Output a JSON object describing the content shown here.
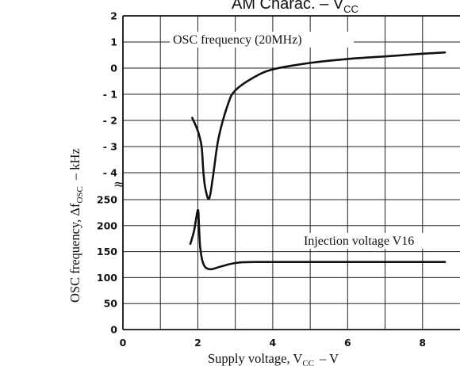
{
  "chart_data": {
    "type": "line",
    "title": "AM Charac.  –  V",
    "title_sub": "CC",
    "xlabel": "Supply voltage, V",
    "xlabel_sub": "CC",
    "xlabel_unit": "–  V",
    "ylabel": "OSC frequency, Δf",
    "ylabel_sub": "OSC",
    "ylabel_unit": "–  kHz",
    "xlim": [
      0,
      9
    ],
    "x_ticks": [
      "0",
      "2",
      "4",
      "6",
      "8"
    ],
    "upper_ylim": [
      -4,
      2
    ],
    "upper_y_ticks": [
      "2",
      "1",
      "0",
      "- 1",
      "- 2",
      "- 3",
      "- 4"
    ],
    "lower_ylim": [
      0,
      250
    ],
    "lower_y_ticks": [
      "250",
      "200",
      "150",
      "100",
      "50",
      "0"
    ],
    "axis_break_symbol": "≈",
    "grid": true,
    "series": [
      {
        "name": "OSC frequency (20MHz)",
        "axis": "upper",
        "points": [
          [
            1.85,
            -1.9
          ],
          [
            2.0,
            -2.4
          ],
          [
            2.1,
            -3.0
          ],
          [
            2.15,
            -4.0
          ],
          [
            2.2,
            -4.6
          ],
          [
            2.3,
            -5.0
          ],
          [
            2.4,
            -4.2
          ],
          [
            2.55,
            -2.7
          ],
          [
            2.8,
            -1.4
          ],
          [
            3.0,
            -0.85
          ],
          [
            3.5,
            -0.35
          ],
          [
            4.0,
            -0.05
          ],
          [
            5.0,
            0.2
          ],
          [
            6.0,
            0.35
          ],
          [
            7.0,
            0.45
          ],
          [
            8.0,
            0.55
          ],
          [
            8.6,
            0.6
          ]
        ]
      },
      {
        "name": "Injection voltage V16",
        "axis": "lower",
        "points": [
          [
            1.8,
            165
          ],
          [
            1.9,
            190
          ],
          [
            2.0,
            230
          ],
          [
            2.03,
            200
          ],
          [
            2.06,
            160
          ],
          [
            2.12,
            133
          ],
          [
            2.2,
            120
          ],
          [
            2.35,
            116
          ],
          [
            2.6,
            121
          ],
          [
            3.0,
            128
          ],
          [
            3.5,
            130
          ],
          [
            5.0,
            130
          ],
          [
            7.0,
            130
          ],
          [
            8.6,
            130
          ]
        ]
      }
    ]
  }
}
